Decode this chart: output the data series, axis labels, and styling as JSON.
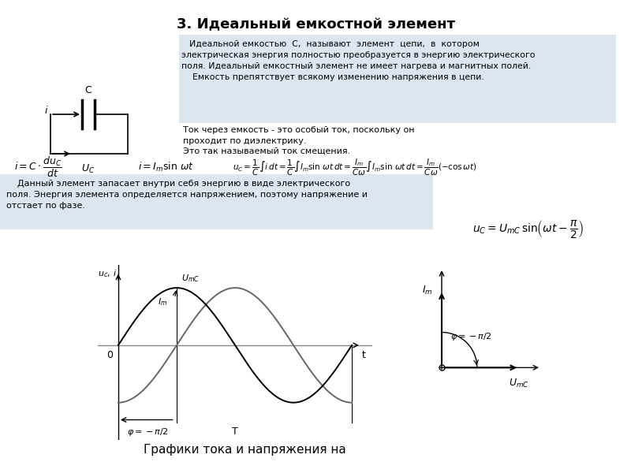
{
  "title": "3. Идеальный емкостной элемент",
  "bg_color": "#ffffff",
  "text_box_color": "#dce6f1",
  "text1_line1": "Идеальной емкостью  C,  называют  элемент  цепи,  в  котором",
  "text1_line2": "электрическая энергия полностью преобразуется в энергию электрического",
  "text1_line3": "поля. Идеальный емкостный элемент не имеет нагрева и магнитных полей.",
  "text1_line4": "    Емкость препятствует всякому изменению напряжения в цепи.",
  "text2_line1": "Ток через емкость - это особый ток, поскольку он",
  "text2_line2": "проходит по диэлектрику.",
  "text2_line3": "Это так называемый ток смещения.",
  "text3_line1": "    Данный элемент запасает внутри себя энергию в виде электрического",
  "text3_line2": "поля. Энергия элемента определяется напряжением, поэтому напряжение и",
  "text3_line3": "отстает по фазе.",
  "bottom_caption": "Графики тока и напряжения на"
}
